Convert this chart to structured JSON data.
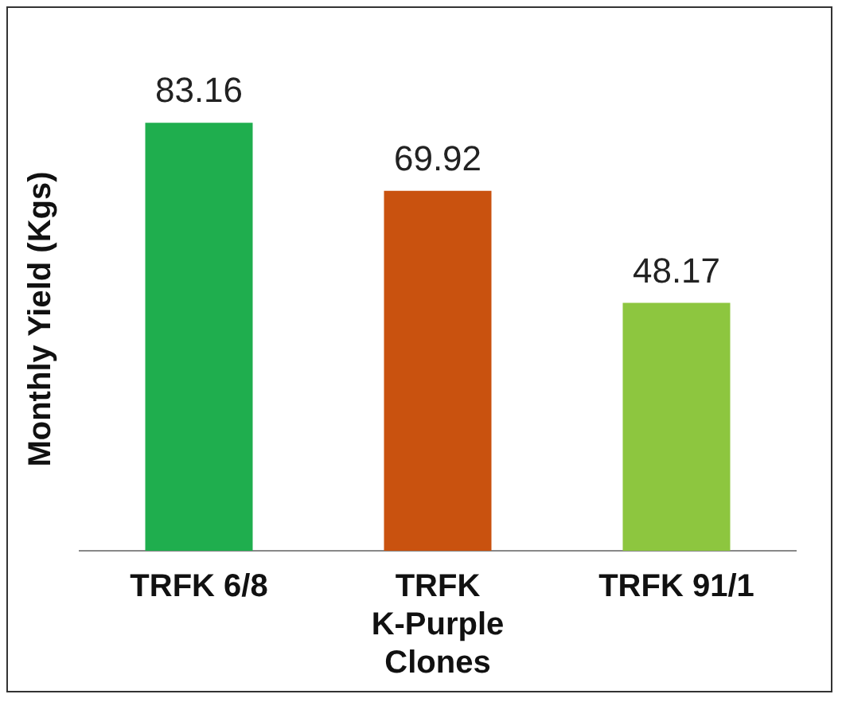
{
  "chart_data": {
    "type": "bar",
    "ylabel": "Monthly Yield (Kgs)",
    "categories": [
      "TRFK 6/8",
      "TRFK K-Purple Clones",
      "TRFK 91/1"
    ],
    "values": [
      83.16,
      69.92,
      48.17
    ],
    "colors": [
      "#1fae4e",
      "#c9520f",
      "#8dc63f"
    ],
    "data_labels": true,
    "grid": false,
    "legend": false
  }
}
